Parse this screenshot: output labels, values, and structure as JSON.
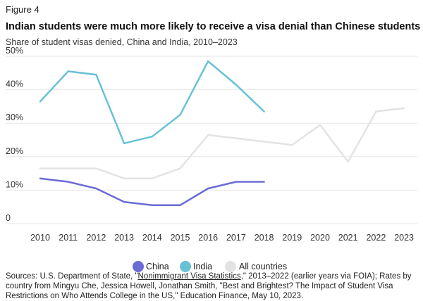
{
  "figure_label": "Figure 4",
  "title": "Indian students were much more likely to receive a visa denial than Chinese students",
  "subtitle": "Share of student visas denied, China and India, 2010–2023",
  "sources": {
    "part1": "Sources: U.S. Department of State, \"",
    "link": "Nonimmigrant Visa Statistics",
    "part2": ",\" 2013–2022 (earlier years via FOIA); Rates by country from Mingyu Che, Jessica Howell, Jonathan Smith, \"Best and Brightest? The Impact of Student Visa Restrictions on Who Attends College in the US,\" Education Finance, May 10, 2023."
  },
  "chart_data": {
    "type": "line",
    "x": [
      2010,
      2011,
      2012,
      2013,
      2014,
      2015,
      2016,
      2017,
      2018,
      2019,
      2020,
      2021,
      2022,
      2023
    ],
    "ylim": [
      0,
      50
    ],
    "y_ticks": [
      "0",
      "10%",
      "20%",
      "30%",
      "40%",
      "50%"
    ],
    "grid": true,
    "legend_position": "bottom",
    "series": [
      {
        "name": "China",
        "color": "#6b6bd6",
        "values": [
          13.5,
          12.5,
          10.5,
          6.5,
          5.5,
          5.5,
          10.5,
          12.5,
          12.5,
          null,
          null,
          null,
          null,
          null
        ]
      },
      {
        "name": "India",
        "color": "#67c2d6",
        "values": [
          36.5,
          45.5,
          44.5,
          24.0,
          26.0,
          32.5,
          48.5,
          41.5,
          33.5,
          null,
          null,
          null,
          null,
          null
        ]
      },
      {
        "name": "All countries",
        "color": "#e3e3e3",
        "values": [
          16.5,
          16.5,
          16.5,
          13.5,
          13.5,
          16.5,
          26.5,
          25.5,
          24.5,
          23.5,
          29.5,
          18.5,
          33.5,
          34.5
        ]
      }
    ]
  }
}
